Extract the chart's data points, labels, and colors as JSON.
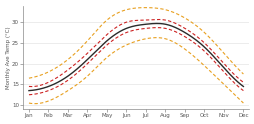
{
  "months": [
    "Jan",
    "Feb",
    "Mar",
    "Apr",
    "May",
    "Jun",
    "Jul",
    "Aug",
    "Sep",
    "Oct",
    "Nov",
    "Dec"
  ],
  "median": [
    13.5,
    14.5,
    17.0,
    21.0,
    25.5,
    28.5,
    29.5,
    29.5,
    27.5,
    24.0,
    19.0,
    14.5
  ],
  "p25": [
    12.5,
    13.5,
    16.0,
    20.0,
    24.5,
    27.5,
    28.5,
    28.5,
    26.5,
    23.0,
    18.0,
    13.5
  ],
  "p75": [
    14.5,
    15.5,
    18.5,
    22.5,
    27.0,
    30.0,
    30.5,
    30.5,
    28.5,
    25.0,
    20.0,
    15.5
  ],
  "min_temp": [
    10.5,
    11.0,
    13.5,
    17.0,
    21.5,
    24.5,
    26.0,
    26.0,
    23.5,
    19.5,
    15.0,
    10.5
  ],
  "max_temp": [
    16.5,
    18.0,
    21.0,
    25.5,
    30.5,
    33.0,
    33.5,
    33.0,
    31.0,
    27.5,
    22.5,
    17.5
  ],
  "color_median": "#2b2b2b",
  "color_p25_p75": "#cc2222",
  "color_min_max": "#e8a020",
  "ylabel": "Monthly Ave Temp (°C)",
  "ylim": [
    9,
    34
  ],
  "yticks": [
    10,
    15,
    20,
    25,
    30
  ],
  "bg_color": "#ffffff",
  "plot_bg_color": "#ffffff"
}
